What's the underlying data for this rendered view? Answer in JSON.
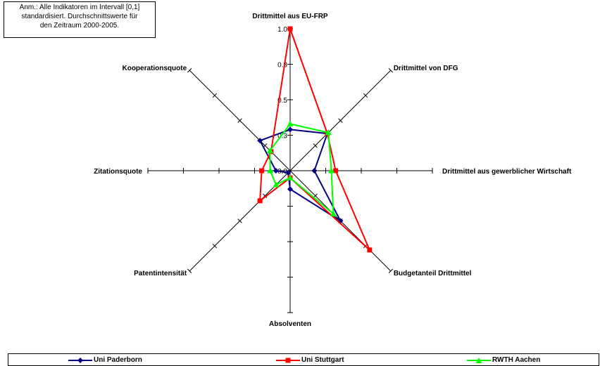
{
  "annotation": {
    "lines": [
      "Anm.: Alle Indikatoren im Intervall [0,1]",
      "standardisiert. Durchschnittswerte für",
      "den Zeitraum 2000-2005."
    ]
  },
  "chart_data": {
    "type": "radar",
    "axes": [
      "Drittmittel aus EU-FRP",
      "Drittmittel von DFG",
      "Drittmittel aus gewerblicher Wirtschaft",
      "Budgetanteil Drittmittel",
      "Absolventen",
      "Patentintensität",
      "Zitationsquote",
      "Kooperationsquote"
    ],
    "scale": {
      "min": 0,
      "max": 1,
      "ticks": [
        "0.0",
        "0.3",
        "0.5",
        "0.8",
        "1.0"
      ]
    },
    "series": [
      {
        "name": "Uni Paderborn",
        "color": "#000080",
        "marker": "diamond",
        "values": [
          0.29,
          0.37,
          0.17,
          0.5,
          0.13,
          0.02,
          0.1,
          0.3
        ]
      },
      {
        "name": "Uni Stuttgart",
        "color": "#ff0000",
        "marker": "square",
        "values": [
          1.0,
          0.37,
          0.32,
          0.79,
          0.05,
          0.3,
          0.2,
          0.19
        ]
      },
      {
        "name": "RWTH Aachen",
        "color": "#00ff00",
        "marker": "triangle",
        "values": [
          0.33,
          0.38,
          0.29,
          0.43,
          0.05,
          0.14,
          0.14,
          0.2
        ]
      }
    ],
    "legend_position": "bottom"
  }
}
